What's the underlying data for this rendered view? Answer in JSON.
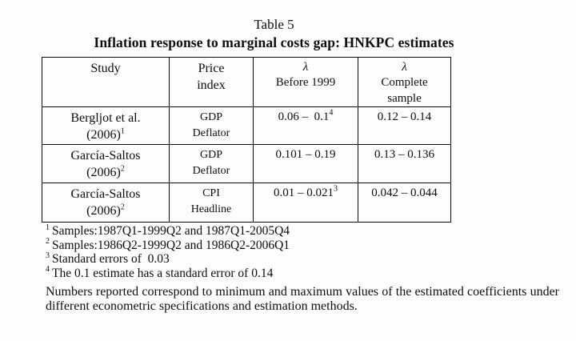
{
  "page": {
    "caption": "Table 5",
    "title": "Inflation response to marginal costs gap: HNKPC estimates"
  },
  "table": {
    "header": {
      "study": "Study",
      "price_line1": "Price",
      "price_line2": "index",
      "lambda": "λ",
      "before_line2": "Before 1999",
      "complete_line2": "Complete",
      "complete_line3": "sample"
    },
    "rows": [
      {
        "study_line1": "Bergljot et al.",
        "study_line2": "(2006)",
        "study_sup": "1",
        "price_line1": "GDP",
        "price_line2": "Deflator",
        "before": "0.06 –  0.1",
        "before_sup": "4",
        "complete": "0.12 – 0.14"
      },
      {
        "study_line1": "García-Saltos",
        "study_line2": "(2006)",
        "study_sup": "2",
        "price_line1": "GDP",
        "price_line2": "Deflator",
        "before": "0.101 – 0.19",
        "before_sup": "",
        "complete": "0.13 – 0.136"
      },
      {
        "study_line1": "García-Saltos",
        "study_line2": "(2006)",
        "study_sup": "2",
        "price_line1": "CPI",
        "price_line2": "Headline",
        "before": "0.01 – 0.021",
        "before_sup": "3",
        "complete": "0.042 – 0.044"
      }
    ]
  },
  "footnotes": [
    {
      "sup": "1",
      "text": "Samples:1987Q1-1999Q2 and 1987Q1-2005Q4"
    },
    {
      "sup": "2",
      "text": "Samples:1986Q2-1999Q2 and 1986Q2-2006Q1"
    },
    {
      "sup": "3",
      "text": "Standard errors of  0.03"
    },
    {
      "sup": "4",
      "text": "The 0.1 estimate has a standard error of 0.14"
    }
  ],
  "notes": "Numbers reported correspond to minimum and maximum values of the estimated coefficients under different econometric specifications and estimation methods.",
  "colors": {
    "text": "#0e0e0e",
    "border": "#0c0c0c",
    "background": "#fdfdfd"
  }
}
